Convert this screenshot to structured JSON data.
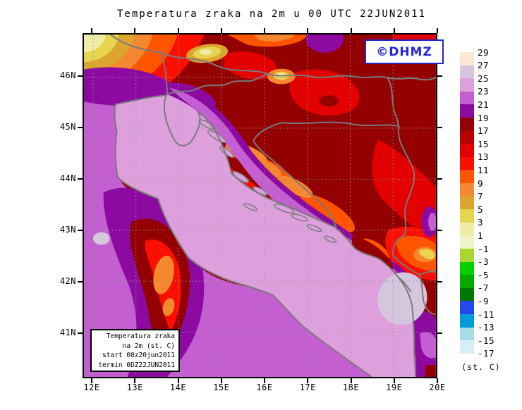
{
  "title": "Temperatura zraka na 2m u 00 UTC 22JUN2011",
  "watermark": {
    "text": "©DHMZ",
    "color": "#2424e0"
  },
  "info_box": {
    "lines": [
      "Temperatura zraka",
      "na 2m (st. C)",
      "start 00z20jun2011",
      "termin 0DZ22JUN2011"
    ]
  },
  "axes": {
    "lat_ticks": [
      "46N",
      "45N",
      "44N",
      "43N",
      "42N",
      "41N"
    ],
    "lon_ticks": [
      "12E",
      "13E",
      "14E",
      "15E",
      "16E",
      "17E",
      "18E",
      "19E",
      "20E"
    ]
  },
  "colorbar": {
    "unit": "(st. C)",
    "boundaries": [
      "29",
      "27",
      "25",
      "23",
      "21",
      "19",
      "17",
      "15",
      "13",
      "11",
      "9",
      "7",
      "5",
      "3",
      "1",
      "-1",
      "-3",
      "-5",
      "-7",
      "-9",
      "-11",
      "-13",
      "-15",
      "-17"
    ],
    "colors": [
      "#FAE8D4",
      "#D5C5DD",
      "#DDA0DD",
      "#C35FD0",
      "#8C0AA0",
      "#940000",
      "#B80000",
      "#E20000",
      "#FB0F00",
      "#FF5400",
      "#F5872E",
      "#DCA62E",
      "#E6D44E",
      "#EEEDA6",
      "#F0F2C8",
      "#A8D830",
      "#00D000",
      "#00A800",
      "#007800",
      "#2447EE",
      "#009CDC",
      "#A8DCE8",
      "#D8EEF4"
    ]
  },
  "map": {
    "line_color": "#7a7a7a",
    "grid_color": "#9a9a9a",
    "sea_color": "#DDA0DD"
  }
}
